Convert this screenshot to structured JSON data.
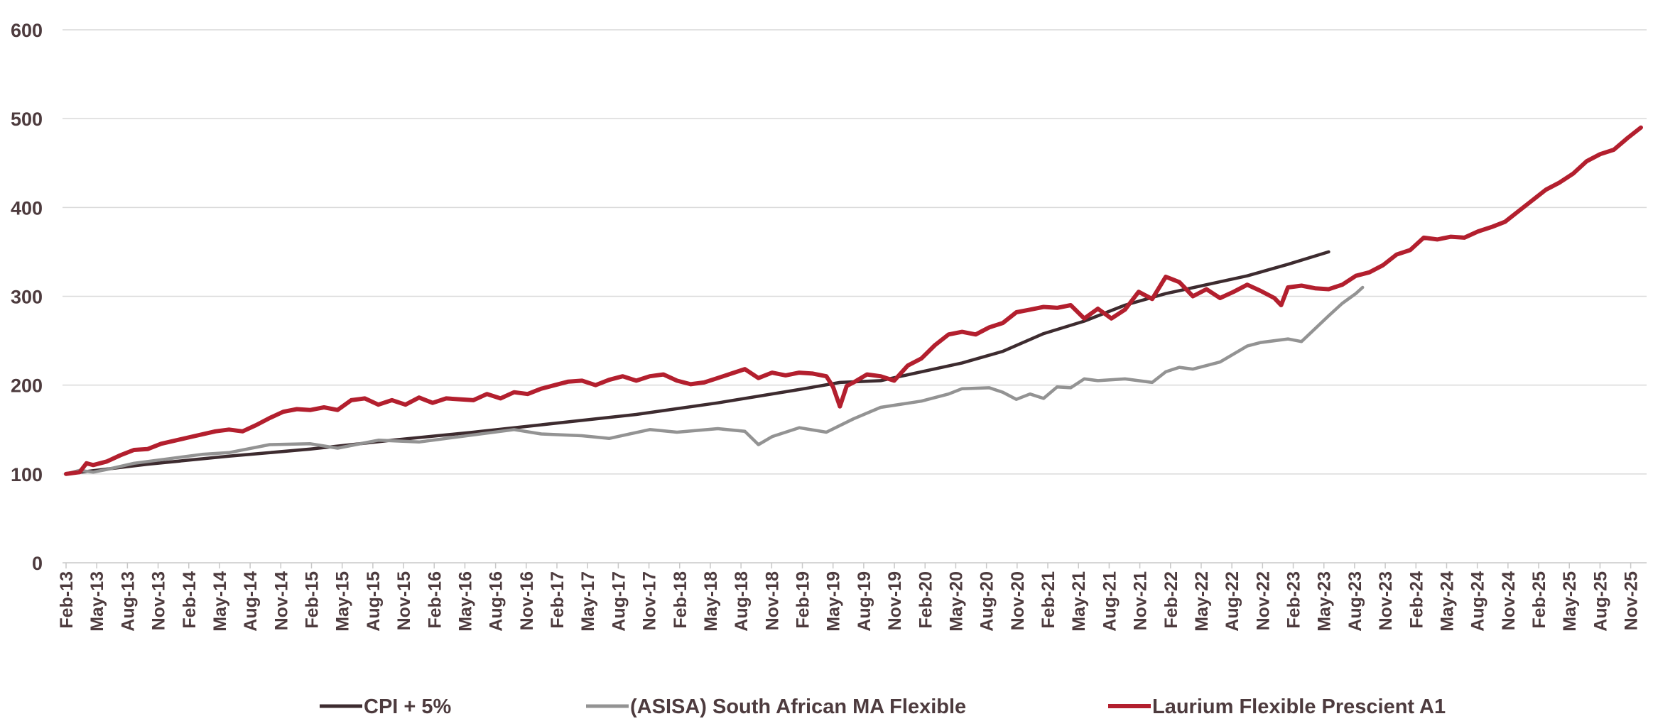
{
  "chart_data": {
    "type": "line",
    "title": "",
    "xlabel": "",
    "ylabel": "",
    "ylim": [
      0,
      600
    ],
    "yticks": [
      "0",
      "100",
      "200",
      "300",
      "400",
      "500",
      "600"
    ],
    "grid": true,
    "legend_position": "bottom",
    "x_tick_labels": [
      "Feb-13",
      "May-13",
      "Aug-13",
      "Nov-13",
      "Feb-14",
      "May-14",
      "Aug-14",
      "Nov-14",
      "Feb-15",
      "May-15",
      "Aug-15",
      "Nov-15",
      "Feb-16",
      "May-16",
      "Aug-16",
      "Nov-16",
      "Feb-17",
      "May-17",
      "Aug-17",
      "Nov-17",
      "Feb-18",
      "May-18",
      "Aug-18",
      "Nov-18",
      "Feb-19",
      "May-19",
      "Aug-19",
      "Nov-19",
      "Feb-20",
      "May-20",
      "Aug-20",
      "Nov-20",
      "Feb-21",
      "May-21",
      "Aug-21",
      "Nov-21",
      "Feb-22",
      "May-22",
      "Aug-22",
      "Nov-22",
      "Feb-23",
      "May-23",
      "Aug-23",
      "Nov-23",
      "Feb-24",
      "May-24",
      "Aug-24",
      "Nov-24",
      "Feb-25",
      "May-25",
      "Aug-25",
      "Nov-25"
    ],
    "months_total": 154,
    "series": [
      {
        "name": "CPI + 5%",
        "color": "#3d2b2f",
        "points": [
          [
            0,
            100
          ],
          [
            12,
            111
          ],
          [
            24,
            120
          ],
          [
            36,
            128
          ],
          [
            48,
            138
          ],
          [
            60,
            147
          ],
          [
            72,
            157
          ],
          [
            84,
            167
          ],
          [
            96,
            180
          ],
          [
            108,
            195
          ],
          [
            114,
            203
          ],
          [
            120,
            205
          ],
          [
            132,
            225
          ],
          [
            138,
            238
          ],
          [
            144,
            258
          ],
          [
            150,
            272
          ],
          [
            156,
            290
          ],
          [
            162,
            303
          ],
          [
            168,
            313
          ],
          [
            174,
            323
          ],
          [
            180,
            336
          ],
          [
            186,
            350
          ]
        ]
      },
      {
        "name": "(ASISA) South African MA Flexible",
        "color": "#939393",
        "points": [
          [
            0,
            100
          ],
          [
            2,
            104
          ],
          [
            4,
            102
          ],
          [
            6,
            105
          ],
          [
            10,
            112
          ],
          [
            16,
            118
          ],
          [
            20,
            122
          ],
          [
            24,
            124
          ],
          [
            30,
            133
          ],
          [
            36,
            134
          ],
          [
            40,
            129
          ],
          [
            46,
            138
          ],
          [
            52,
            136
          ],
          [
            58,
            142
          ],
          [
            66,
            150
          ],
          [
            70,
            145
          ],
          [
            76,
            143
          ],
          [
            80,
            140
          ],
          [
            86,
            150
          ],
          [
            90,
            147
          ],
          [
            96,
            151
          ],
          [
            100,
            148
          ],
          [
            102,
            133
          ],
          [
            104,
            142
          ],
          [
            108,
            152
          ],
          [
            112,
            147
          ],
          [
            116,
            162
          ],
          [
            120,
            175
          ],
          [
            126,
            182
          ],
          [
            130,
            190
          ],
          [
            132,
            196
          ],
          [
            136,
            197
          ],
          [
            138,
            192
          ],
          [
            140,
            184
          ],
          [
            142,
            190
          ],
          [
            144,
            185
          ],
          [
            146,
            198
          ],
          [
            148,
            197
          ],
          [
            150,
            207
          ],
          [
            152,
            205
          ],
          [
            156,
            207
          ],
          [
            160,
            203
          ],
          [
            162,
            215
          ],
          [
            164,
            220
          ],
          [
            166,
            218
          ],
          [
            170,
            226
          ],
          [
            174,
            244
          ],
          [
            176,
            248
          ],
          [
            180,
            252
          ],
          [
            182,
            249
          ],
          [
            186,
            278
          ],
          [
            188,
            292
          ],
          [
            190,
            303
          ],
          [
            191,
            310
          ]
        ]
      },
      {
        "name": "Laurium Flexible Prescient A1",
        "color": "#b31f2e",
        "points": [
          [
            0,
            100
          ],
          [
            2,
            102
          ],
          [
            3,
            112
          ],
          [
            4,
            110
          ],
          [
            6,
            114
          ],
          [
            8,
            121
          ],
          [
            10,
            127
          ],
          [
            12,
            128
          ],
          [
            14,
            134
          ],
          [
            18,
            141
          ],
          [
            22,
            148
          ],
          [
            24,
            150
          ],
          [
            26,
            148
          ],
          [
            28,
            155
          ],
          [
            30,
            163
          ],
          [
            32,
            170
          ],
          [
            34,
            173
          ],
          [
            36,
            172
          ],
          [
            38,
            175
          ],
          [
            40,
            172
          ],
          [
            42,
            183
          ],
          [
            44,
            185
          ],
          [
            46,
            178
          ],
          [
            48,
            183
          ],
          [
            50,
            178
          ],
          [
            52,
            186
          ],
          [
            54,
            180
          ],
          [
            56,
            185
          ],
          [
            60,
            183
          ],
          [
            62,
            190
          ],
          [
            64,
            185
          ],
          [
            66,
            192
          ],
          [
            68,
            190
          ],
          [
            70,
            196
          ],
          [
            72,
            200
          ],
          [
            74,
            204
          ],
          [
            76,
            205
          ],
          [
            78,
            200
          ],
          [
            80,
            206
          ],
          [
            82,
            210
          ],
          [
            84,
            205
          ],
          [
            86,
            210
          ],
          [
            88,
            212
          ],
          [
            90,
            205
          ],
          [
            92,
            201
          ],
          [
            94,
            203
          ],
          [
            96,
            208
          ],
          [
            98,
            213
          ],
          [
            100,
            218
          ],
          [
            102,
            208
          ],
          [
            104,
            214
          ],
          [
            106,
            211
          ],
          [
            108,
            214
          ],
          [
            110,
            213
          ],
          [
            112,
            210
          ],
          [
            113,
            198
          ],
          [
            114,
            176
          ],
          [
            115,
            199
          ],
          [
            116,
            203
          ],
          [
            118,
            212
          ],
          [
            120,
            210
          ],
          [
            122,
            205
          ],
          [
            124,
            222
          ],
          [
            126,
            230
          ],
          [
            128,
            245
          ],
          [
            130,
            257
          ],
          [
            132,
            260
          ],
          [
            134,
            257
          ],
          [
            136,
            265
          ],
          [
            138,
            270
          ],
          [
            140,
            282
          ],
          [
            142,
            285
          ],
          [
            144,
            288
          ],
          [
            146,
            287
          ],
          [
            148,
            290
          ],
          [
            150,
            275
          ],
          [
            152,
            286
          ],
          [
            154,
            275
          ],
          [
            156,
            285
          ],
          [
            158,
            305
          ],
          [
            160,
            297
          ],
          [
            162,
            322
          ],
          [
            164,
            316
          ],
          [
            166,
            300
          ],
          [
            168,
            308
          ],
          [
            170,
            298
          ],
          [
            172,
            305
          ],
          [
            174,
            313
          ],
          [
            176,
            306
          ],
          [
            178,
            298
          ],
          [
            179,
            290
          ],
          [
            180,
            310
          ],
          [
            182,
            312
          ],
          [
            184,
            309
          ],
          [
            186,
            308
          ],
          [
            188,
            313
          ],
          [
            190,
            323
          ],
          [
            192,
            327
          ],
          [
            194,
            335
          ],
          [
            196,
            347
          ],
          [
            198,
            352
          ],
          [
            200,
            366
          ],
          [
            202,
            364
          ],
          [
            204,
            367
          ],
          [
            206,
            366
          ],
          [
            208,
            373
          ],
          [
            210,
            378
          ],
          [
            212,
            384
          ],
          [
            214,
            396
          ],
          [
            216,
            408
          ],
          [
            218,
            420
          ],
          [
            220,
            428
          ],
          [
            222,
            438
          ],
          [
            224,
            452
          ],
          [
            226,
            460
          ],
          [
            228,
            465
          ],
          [
            230,
            478
          ],
          [
            232,
            490
          ]
        ]
      }
    ]
  }
}
